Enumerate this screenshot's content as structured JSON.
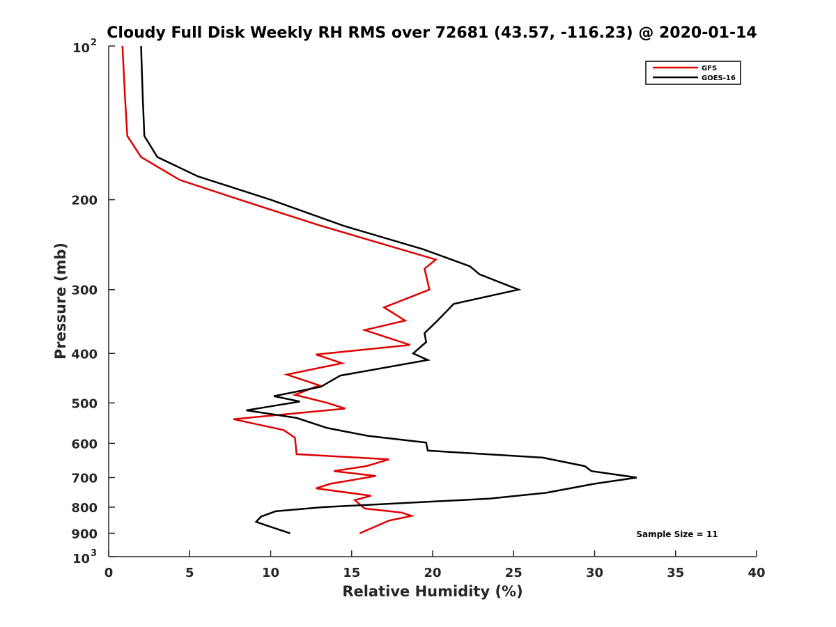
{
  "chart_data": {
    "type": "line",
    "title": "Cloudy Full Disk Weekly RH RMS over 72681 (43.57, -116.23) @ 2020-01-14",
    "xlabel": "Relative Humidity (%)",
    "ylabel": "Pressure (mb)",
    "xlim": [
      0,
      40
    ],
    "ylim": [
      100,
      1000
    ],
    "yscale": "log",
    "y_reversed": true,
    "xticks": [
      0,
      5,
      10,
      15,
      20,
      25,
      30,
      35,
      40
    ],
    "yticks": [
      {
        "value": 100,
        "base": "10",
        "exp": "2"
      },
      {
        "value": 200,
        "label": "200"
      },
      {
        "value": 300,
        "label": "300"
      },
      {
        "value": 400,
        "label": "400"
      },
      {
        "value": 500,
        "label": "500"
      },
      {
        "value": 600,
        "label": "600"
      },
      {
        "value": 700,
        "label": "700"
      },
      {
        "value": 800,
        "label": "800"
      },
      {
        "value": 900,
        "label": "900"
      },
      {
        "value": 1000,
        "base": "10",
        "exp": "3"
      }
    ],
    "grid": false,
    "legend_position": "top-right",
    "annotation": "Sample Size = 11",
    "series": [
      {
        "name": "GFS",
        "color": "#e00000",
        "points": [
          [
            0.85,
            100
          ],
          [
            1.0,
            125
          ],
          [
            1.15,
            150
          ],
          [
            2.0,
            165
          ],
          [
            4.4,
            183
          ],
          [
            8.1,
            200
          ],
          [
            13.1,
            225
          ],
          [
            20.2,
            262
          ],
          [
            19.5,
            273
          ],
          [
            19.8,
            300
          ],
          [
            17.0,
            325
          ],
          [
            18.3,
            345
          ],
          [
            15.8,
            360
          ],
          [
            18.6,
            385
          ],
          [
            12.8,
            402
          ],
          [
            14.4,
            418
          ],
          [
            11.0,
            440
          ],
          [
            13.0,
            462
          ],
          [
            11.5,
            482
          ],
          [
            13.5,
            500
          ],
          [
            14.6,
            513
          ],
          [
            7.7,
            538
          ],
          [
            10.8,
            565
          ],
          [
            11.5,
            585
          ],
          [
            11.6,
            630
          ],
          [
            17.3,
            645
          ],
          [
            15.9,
            665
          ],
          [
            13.9,
            680
          ],
          [
            16.5,
            695
          ],
          [
            13.7,
            720
          ],
          [
            12.8,
            735
          ],
          [
            16.2,
            760
          ],
          [
            15.2,
            775
          ],
          [
            15.8,
            805
          ],
          [
            18.1,
            820
          ],
          [
            18.7,
            832
          ],
          [
            17.3,
            850
          ],
          [
            15.5,
            900
          ]
        ]
      },
      {
        "name": "GOES-16",
        "color": "#000000",
        "points": [
          [
            2.0,
            100
          ],
          [
            2.1,
            125
          ],
          [
            2.2,
            150
          ],
          [
            3.0,
            165
          ],
          [
            5.5,
            180
          ],
          [
            10.0,
            200
          ],
          [
            14.5,
            225
          ],
          [
            19.4,
            250
          ],
          [
            22.3,
            270
          ],
          [
            22.9,
            280
          ],
          [
            25.3,
            300
          ],
          [
            21.3,
            320
          ],
          [
            20.3,
            345
          ],
          [
            19.5,
            365
          ],
          [
            19.6,
            380
          ],
          [
            18.8,
            400
          ],
          [
            19.7,
            412
          ],
          [
            14.3,
            442
          ],
          [
            13.1,
            465
          ],
          [
            10.2,
            485
          ],
          [
            11.8,
            497
          ],
          [
            8.5,
            517
          ],
          [
            11.6,
            535
          ],
          [
            13.5,
            560
          ],
          [
            16.0,
            580
          ],
          [
            19.6,
            598
          ],
          [
            19.7,
            620
          ],
          [
            26.8,
            640
          ],
          [
            29.4,
            665
          ],
          [
            29.8,
            680
          ],
          [
            32.6,
            700
          ],
          [
            30.0,
            720
          ],
          [
            27.0,
            750
          ],
          [
            23.5,
            770
          ],
          [
            13.2,
            800
          ],
          [
            10.3,
            815
          ],
          [
            9.4,
            835
          ],
          [
            9.1,
            855
          ],
          [
            9.8,
            870
          ],
          [
            11.2,
            900
          ]
        ]
      }
    ]
  }
}
